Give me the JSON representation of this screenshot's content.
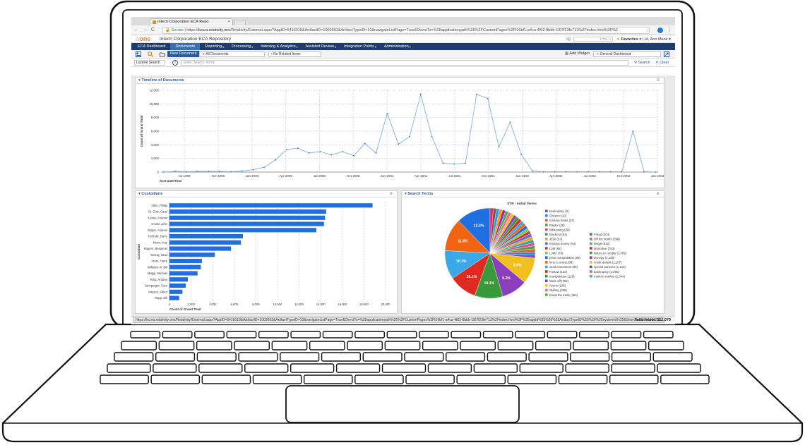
{
  "browser": {
    "tab_title": "Intech Corporation ECA Repo",
    "secure_label": "Secure",
    "url_host": "kcura.relativity.one",
    "url_path": "/Relativity/External.aspx?AppID=6416018&ArtifactID=1003663&ArtifactTypeID=10&navigateListPage=True&DirectTo=%25applicationpath%25%2FCustomPages%2Ff16bf1-a4ca-4f02-8bbb-1f07f23fe713%2Findex.html%3F%2"
  },
  "app": {
    "logo": "one",
    "workspace_title": "Intech Corporation ECA Repository",
    "shortcut_hint": "CTRL+/",
    "favorites": "Favorites",
    "greeting": "Hi, Ann Marie"
  },
  "nav": [
    {
      "label": "ECA Dashboard",
      "active": false
    },
    {
      "label": "Documents",
      "active": true
    },
    {
      "label": "Reporting",
      "active": false
    },
    {
      "label": "Processing",
      "active": false
    },
    {
      "label": "Indexing & Analytics",
      "active": false
    },
    {
      "label": "Assisted Review",
      "active": false
    },
    {
      "label": "Integration Points",
      "active": false
    },
    {
      "label": "Administration",
      "active": false
    }
  ],
  "toolbar": {
    "new_document": "New Document",
    "view_select": "All Documents",
    "related_select": "• No Related Items",
    "add_widget": "Add Widget",
    "dashboard_select": "General Dashboard"
  },
  "search": {
    "type": "Lucene Search",
    "placeholder": "Enter Search Terms",
    "search_btn": "Search",
    "clear_btn": "Clear"
  },
  "panels": {
    "timeline_title": "Timeline of Documents",
    "custodians_title": "Custodians",
    "terms_title": "Search Terms"
  },
  "status": {
    "url": "https://kcura.relativity.one/Relativity/External.aspx?AppID=6416018&ArtifactID=1003663&ArtifactTypeID=10&navigateListPage=True&DirectTo=%25applicationpath%25%2FCustomPages%2Ff16bf1-a4ca-4f02-8bbb-1f07f23fe713%2Findex.html%3F%25appid%25%26%25ArtifactTypeID%25%26%25systemid%25&SelectedTab=1034231",
    "total_items": "Total Items: 112,079"
  },
  "chart_data": [
    {
      "type": "line",
      "title": "Timeline of Documents",
      "xlabel": "Sort Date/Time",
      "ylabel": "Count of Grand Total",
      "ylim": [
        0,
        12000
      ],
      "yticks": [
        "0",
        "2,000",
        "4,000",
        "6,000",
        "8,000",
        "10,000",
        "12,000"
      ],
      "xticks": [
        "Jul-1999",
        "Oct-1999",
        "Jan-2000",
        "Apr-2000",
        "Jul-2000",
        "Oct-2000",
        "Jan-2001",
        "Apr-2001",
        "Jul-2001",
        "Oct-2001",
        "Jan-2002",
        "Apr-2002",
        "Jul-2002",
        "Oct-2002",
        "Jan-2003"
      ],
      "grid": true,
      "values": [
        0,
        100,
        50,
        100,
        100,
        100,
        50,
        150,
        350,
        700,
        1800,
        3300,
        3500,
        2800,
        3000,
        2500,
        3000,
        2400,
        4200,
        2800,
        8600,
        4100,
        5200,
        11400,
        5200,
        1300,
        1200,
        1300,
        11400,
        10800,
        3700,
        7300,
        2600,
        150,
        50,
        50,
        50,
        50,
        50,
        50,
        50,
        50,
        6000,
        50,
        0
      ]
    },
    {
      "type": "bar",
      "orientation": "horizontal",
      "title": "Custodians",
      "xlabel": "Count of Grand Total",
      "ylabel": "Custodian",
      "xlim": [
        0,
        20000
      ],
      "xticks": [
        "0",
        "2,000",
        "4,000",
        "6,000",
        "8,000",
        "10,000",
        "12,000",
        "14,000",
        "16,000",
        "18,000",
        "20,000"
      ],
      "grid": true,
      "categories": [
        "Allen, Phillip",
        "St. Clair, Carol",
        "Lewis, Andrew",
        "Arnold, John",
        "Zipper, Andrew",
        "Tycholiz, Barry",
        "Mann, Kay",
        "Rogers, Benjamin",
        "McKay, Brad",
        "Arora, Harry",
        "Williams III, Bill",
        "Maggi, Michael",
        "Ring, Andrea",
        "Semperger, Cara",
        "Meyers, Albert",
        "Rapp, Bill"
      ],
      "values": [
        18800,
        14500,
        14400,
        14300,
        13600,
        6800,
        6600,
        5700,
        4200,
        3000,
        2900,
        2600,
        1700,
        1500,
        1200,
        900
      ]
    },
    {
      "type": "pie",
      "title": "STR - Initial Terms",
      "slice_labels": [
        "12.3%",
        "11.8%",
        "10.3%",
        "10.1%",
        "10.1%",
        "9.2%",
        "9.4%"
      ],
      "legend_left": [
        "bankruptcy (3)",
        "Chewco (10)",
        "missing funds (22)",
        "Raptor (26)",
        "Whitewing (28)",
        "blackout (52)",
        "JEDI (53)",
        "missing money (54)",
        "LJM (65)",
        "LJM2 (79)",
        "price manipulation (86)",
        "time to dump (88)",
        "word investment (95)",
        "Fastow (102)",
        "manipulation (125)",
        "Write off (202)",
        "Azurix (225)",
        "Skilling (258)",
        "break the trade (363)"
      ],
      "legend_right": [
        "Fraud (364)",
        "Off the books (398)",
        "Regal (542)",
        "derivative (703)",
        "failure to comply (1,009)",
        "Dynegy (1,105)",
        "credit default (1,107)",
        "special purpose (1,122)",
        "bankruptcy (1,290)",
        "mark-to-market (1,344)"
      ],
      "colors": {
        "blue": "#1f6fe0",
        "orange": "#f06412",
        "light_blue": "#3ba8e6",
        "red": "#dd2b22",
        "green": "#3a9a3a",
        "purple": "#8b3fbc",
        "yellow": "#f0c020"
      }
    }
  ]
}
